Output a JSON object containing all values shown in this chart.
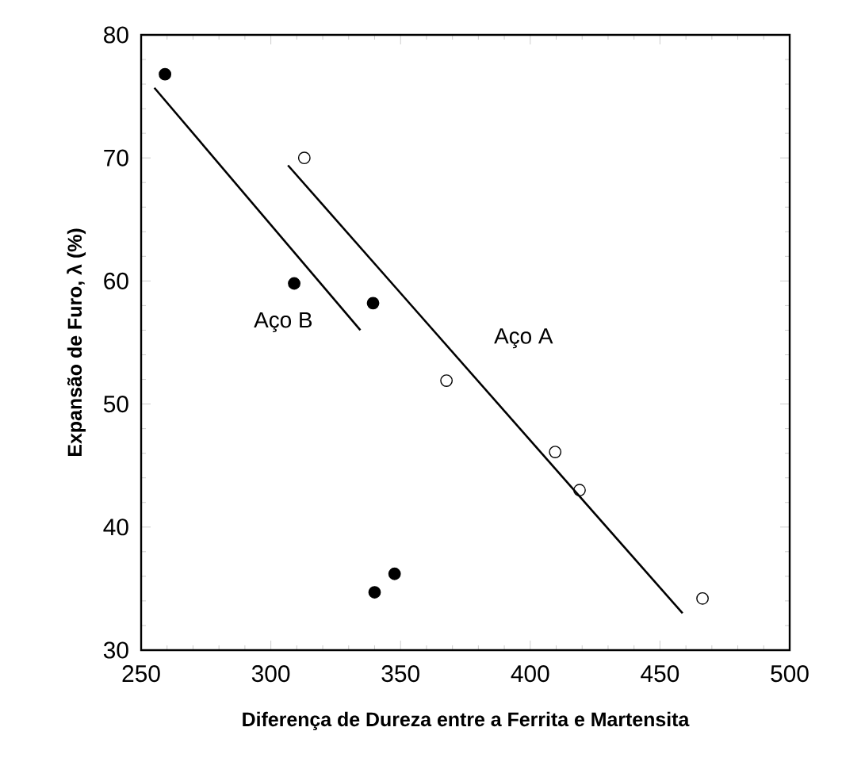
{
  "chart_data": {
    "type": "scatter",
    "xlabel": "Diferença de Dureza entre a Ferrita e Martensita",
    "ylabel": "Expansão de Furo, λ (%)",
    "xlim": [
      250,
      500
    ],
    "xticks": [
      250,
      300,
      350,
      400,
      450,
      500
    ],
    "ylim": [
      30,
      80
    ],
    "yticks": [
      30,
      40,
      50,
      60,
      70,
      80
    ],
    "grid": false,
    "series": [
      {
        "marker": "circle",
        "color": "#000000",
        "x": [
          259.2,
          309,
          339.4,
          340,
          347.7
        ],
        "values": [
          76.8,
          59.8,
          58.2,
          34.7,
          36.2
        ]
      },
      {
        "marker": "open circle",
        "color": "#000000",
        "x": [
          312.9,
          367.7,
          409.6,
          419,
          466.4
        ],
        "values": [
          70,
          51.9,
          46.1,
          43,
          34.2
        ]
      },
      {
        "type": "line",
        "name": "Aço B",
        "marker": "none",
        "color": "#000000",
        "x": [
          255.1,
          334.5
        ],
        "values": [
          75.7,
          56.0
        ]
      },
      {
        "type": "line",
        "name": "Aço A",
        "marker": "none",
        "color": "#000000",
        "x": [
          306.6,
          458.7
        ],
        "values": [
          69.4,
          33.0
        ]
      }
    ]
  }
}
